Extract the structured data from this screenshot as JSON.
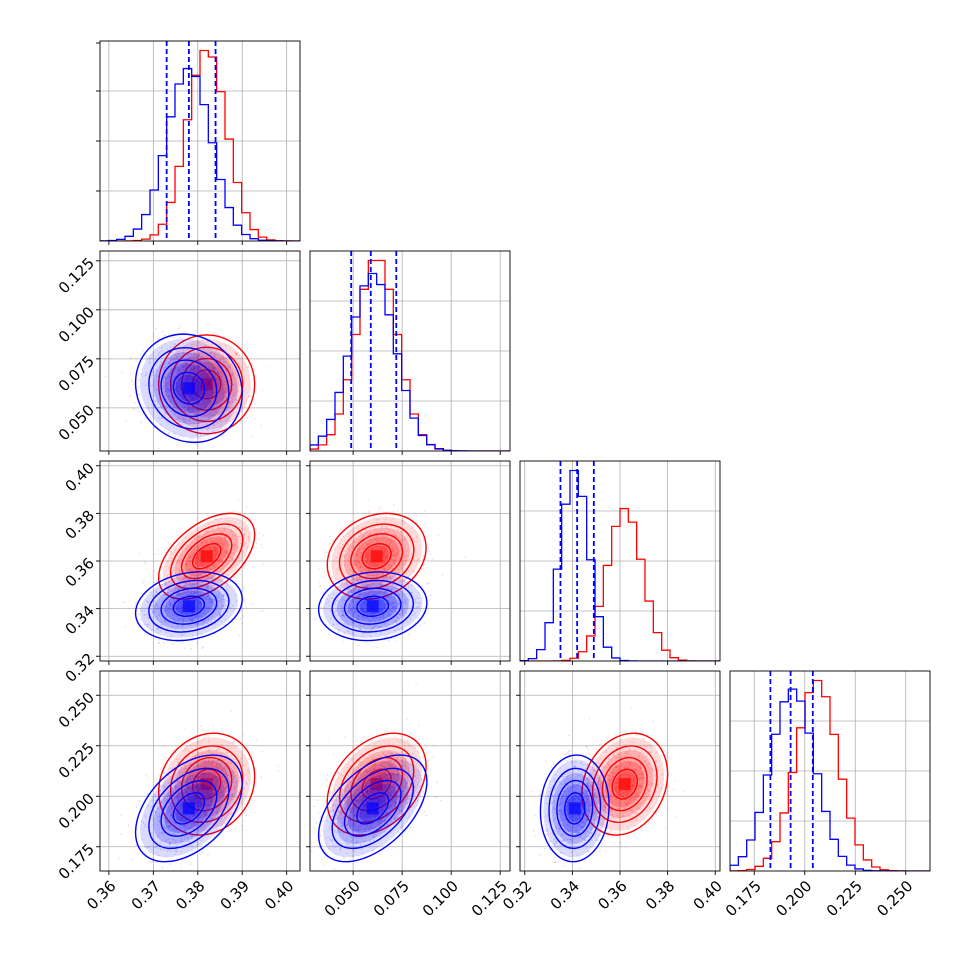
{
  "chart_data": {
    "type": "corner",
    "n_params": 4,
    "grid": true,
    "colors": {
      "series_a": "#ff0000",
      "series_b": "#0000ff",
      "quantile_lines": "#0000ff"
    },
    "params": [
      {
        "range": [
          0.358,
          0.403
        ],
        "ticks": [
          0.36,
          0.37,
          0.38,
          0.39,
          0.4
        ],
        "tick_labels": [
          "0.36",
          "0.37",
          "0.38",
          "0.39",
          "0.40"
        ]
      },
      {
        "range": [
          0.028,
          0.13
        ],
        "ticks": [
          0.05,
          0.075,
          0.1,
          0.125
        ],
        "tick_labels": [
          "0.050",
          "0.075",
          "0.100",
          "0.125"
        ]
      },
      {
        "range": [
          0.318,
          0.402
        ],
        "ticks": [
          0.32,
          0.34,
          0.36,
          0.38,
          0.4
        ],
        "tick_labels": [
          "0.32",
          "0.34",
          "0.36",
          "0.38",
          "0.40"
        ]
      },
      {
        "range": [
          0.163,
          0.262
        ],
        "ticks": [
          0.175,
          0.2,
          0.225,
          0.25
        ],
        "tick_labels": [
          "0.175",
          "0.200",
          "0.225",
          "0.250"
        ]
      }
    ],
    "series": [
      {
        "color": "#ff0000",
        "mean": [
          0.382,
          0.062,
          0.362,
          0.206
        ],
        "std": [
          0.0045,
          0.0105,
          0.0075,
          0.0105
        ],
        "corr": [
          [
            1,
            0,
            0.5,
            0.15
          ],
          [
            0,
            1,
            0.2,
            0.35
          ],
          [
            0.5,
            0.2,
            1,
            0.2
          ],
          [
            0.15,
            0.35,
            0.2,
            1
          ]
        ]
      },
      {
        "color": "#0000ff",
        "mean": [
          0.378,
          0.06,
          0.341,
          0.194
        ],
        "std": [
          0.005,
          0.0115,
          0.006,
          0.011
        ],
        "corr": [
          [
            1,
            -0.1,
            0.2,
            0.45
          ],
          [
            -0.1,
            1,
            0.1,
            0.5
          ],
          [
            0.2,
            0.1,
            1,
            0.05
          ],
          [
            0.45,
            0.5,
            0.05,
            1
          ]
        ]
      }
    ],
    "quantiles": [
      [
        0.373,
        0.378,
        0.384
      ],
      [
        0.049,
        0.059,
        0.072
      ],
      [
        0.335,
        0.342,
        0.349
      ],
      [
        0.183,
        0.193,
        0.204
      ]
    ]
  }
}
